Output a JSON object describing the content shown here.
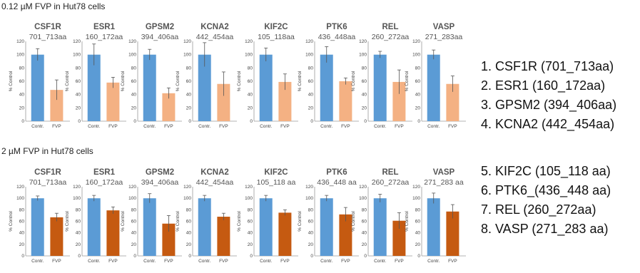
{
  "colors": {
    "control": "#5b9bd5",
    "fvp_top": "#f4b183",
    "fvp_bottom": "#c55a11",
    "axis": "#9a9a9a",
    "error": "#555555"
  },
  "legend_top": [
    "1. CSF1R (701_713aa)",
    "2. ESR1 (160_172aa)",
    "3. GPSM2 (394_406aa)",
    "4. KCNA2 (442_454aa)"
  ],
  "legend_bottom": [
    "5. KIF2C (105_118 aa)",
    "6. PTK6_(436_448 aa)",
    "7. REL (260_272aa)",
    "8. VASP (271_283 aa)"
  ],
  "chart_data": [
    {
      "type": "bar",
      "title": "0.12 µM FVP in Hut78 cells",
      "ylabel": "% Control",
      "ylim": [
        0,
        120
      ],
      "yticks": [
        "0",
        "20",
        "40",
        "60",
        "80",
        "100",
        "120"
      ],
      "categories": [
        "Contr.",
        "FVP"
      ],
      "panels": [
        {
          "name": "CSF1R",
          "subtitle": "701_713aa",
          "values": [
            100,
            47
          ],
          "errors": [
            9,
            15
          ]
        },
        {
          "name": "ESR1",
          "subtitle": "160_172aa",
          "values": [
            100,
            58
          ],
          "errors": [
            16,
            8
          ]
        },
        {
          "name": "GPSM2",
          "subtitle": "394_406aa",
          "values": [
            100,
            42
          ],
          "errors": [
            8,
            8
          ]
        },
        {
          "name": "KCNA2",
          "subtitle": "442_454aa",
          "values": [
            100,
            56
          ],
          "errors": [
            18,
            18
          ]
        },
        {
          "name": "KIF2C",
          "subtitle": "105_118aa",
          "values": [
            100,
            59
          ],
          "errors": [
            10,
            12
          ]
        },
        {
          "name": "PTK6",
          "subtitle": "436_448aa",
          "values": [
            100,
            60
          ],
          "errors": [
            12,
            5
          ]
        },
        {
          "name": "REL",
          "subtitle": "260_272aa",
          "values": [
            100,
            59
          ],
          "errors": [
            5,
            18
          ]
        },
        {
          "name": "VASP",
          "subtitle": "271_283aa",
          "values": [
            100,
            56
          ],
          "errors": [
            7,
            12
          ]
        }
      ]
    },
    {
      "type": "bar",
      "title": "2 µM FVP in Hut78 cells",
      "ylabel": "% Control",
      "ylim": [
        0,
        120
      ],
      "yticks": [
        "0",
        "20",
        "40",
        "60",
        "80",
        "100",
        "120"
      ],
      "categories": [
        "Contr.",
        "FVP"
      ],
      "panels": [
        {
          "name": "CSF1R",
          "subtitle": "701_713aa",
          "values": [
            100,
            67
          ],
          "errors": [
            4,
            7
          ]
        },
        {
          "name": "ESR1",
          "subtitle": "160_172aa",
          "values": [
            100,
            79
          ],
          "errors": [
            5,
            6
          ]
        },
        {
          "name": "GPSM2",
          "subtitle": "394_406aa",
          "values": [
            100,
            56
          ],
          "errors": [
            8,
            14
          ]
        },
        {
          "name": "KCNA2",
          "subtitle": "442_454aa",
          "values": [
            100,
            68
          ],
          "errors": [
            5,
            6
          ]
        },
        {
          "name": "KIF2C",
          "subtitle": "105_118 aa",
          "values": [
            100,
            75
          ],
          "errors": [
            5,
            5
          ]
        },
        {
          "name": "PTK6",
          "subtitle": "436_448 aa",
          "values": [
            100,
            72
          ],
          "errors": [
            5,
            12
          ]
        },
        {
          "name": "REL",
          "subtitle": "260_272aa",
          "values": [
            100,
            61
          ],
          "errors": [
            7,
            14
          ]
        },
        {
          "name": "VASP",
          "subtitle": "271_283 aa",
          "values": [
            100,
            77
          ],
          "errors": [
            9,
            12
          ]
        }
      ]
    }
  ]
}
